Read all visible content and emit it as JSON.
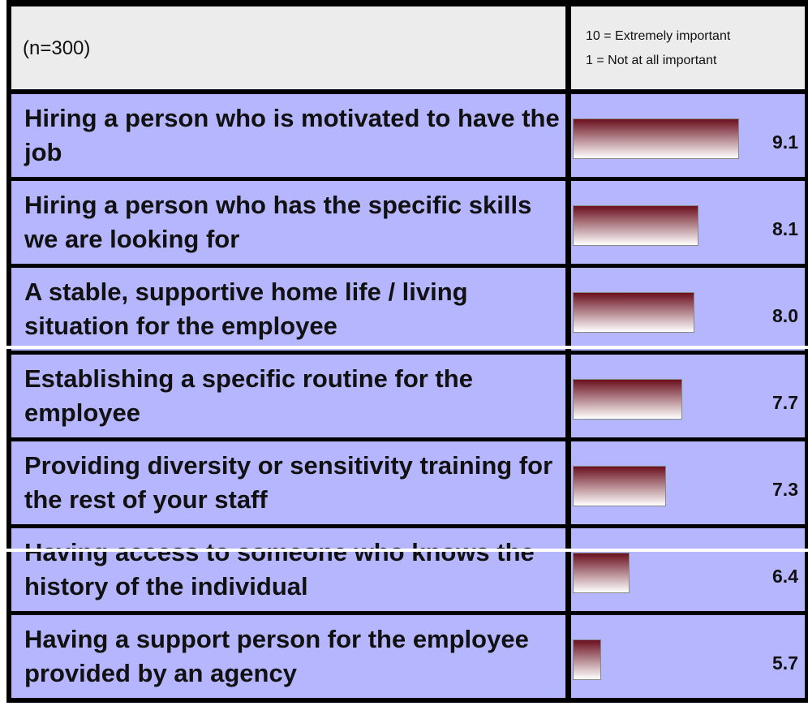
{
  "chart_data": {
    "type": "bar",
    "subtitle": "(n=300)",
    "notes": [
      "10 = Extremely important",
      "1 = Not at all important"
    ],
    "categories": [
      "Hiring a person who is motivated to have the job",
      "Hiring a person who has the specific skills we are looking for",
      "A stable, supportive home life / living situation for the employee",
      "Establishing a specific routine for the employee",
      "Providing diversity or sensitivity training for the rest of your staff",
      "Having access to someone who knows the history of the individual",
      "Having a support person for the employee provided by an agency"
    ],
    "values": [
      9.1,
      8.1,
      8.0,
      7.7,
      7.3,
      6.4,
      5.7
    ],
    "value_labels": [
      "9.1",
      "8.1",
      "8.0",
      "7.7",
      "7.3",
      "6.4",
      "5.7"
    ],
    "xlim": [
      5,
      10
    ],
    "color": "#6b0f1e"
  }
}
